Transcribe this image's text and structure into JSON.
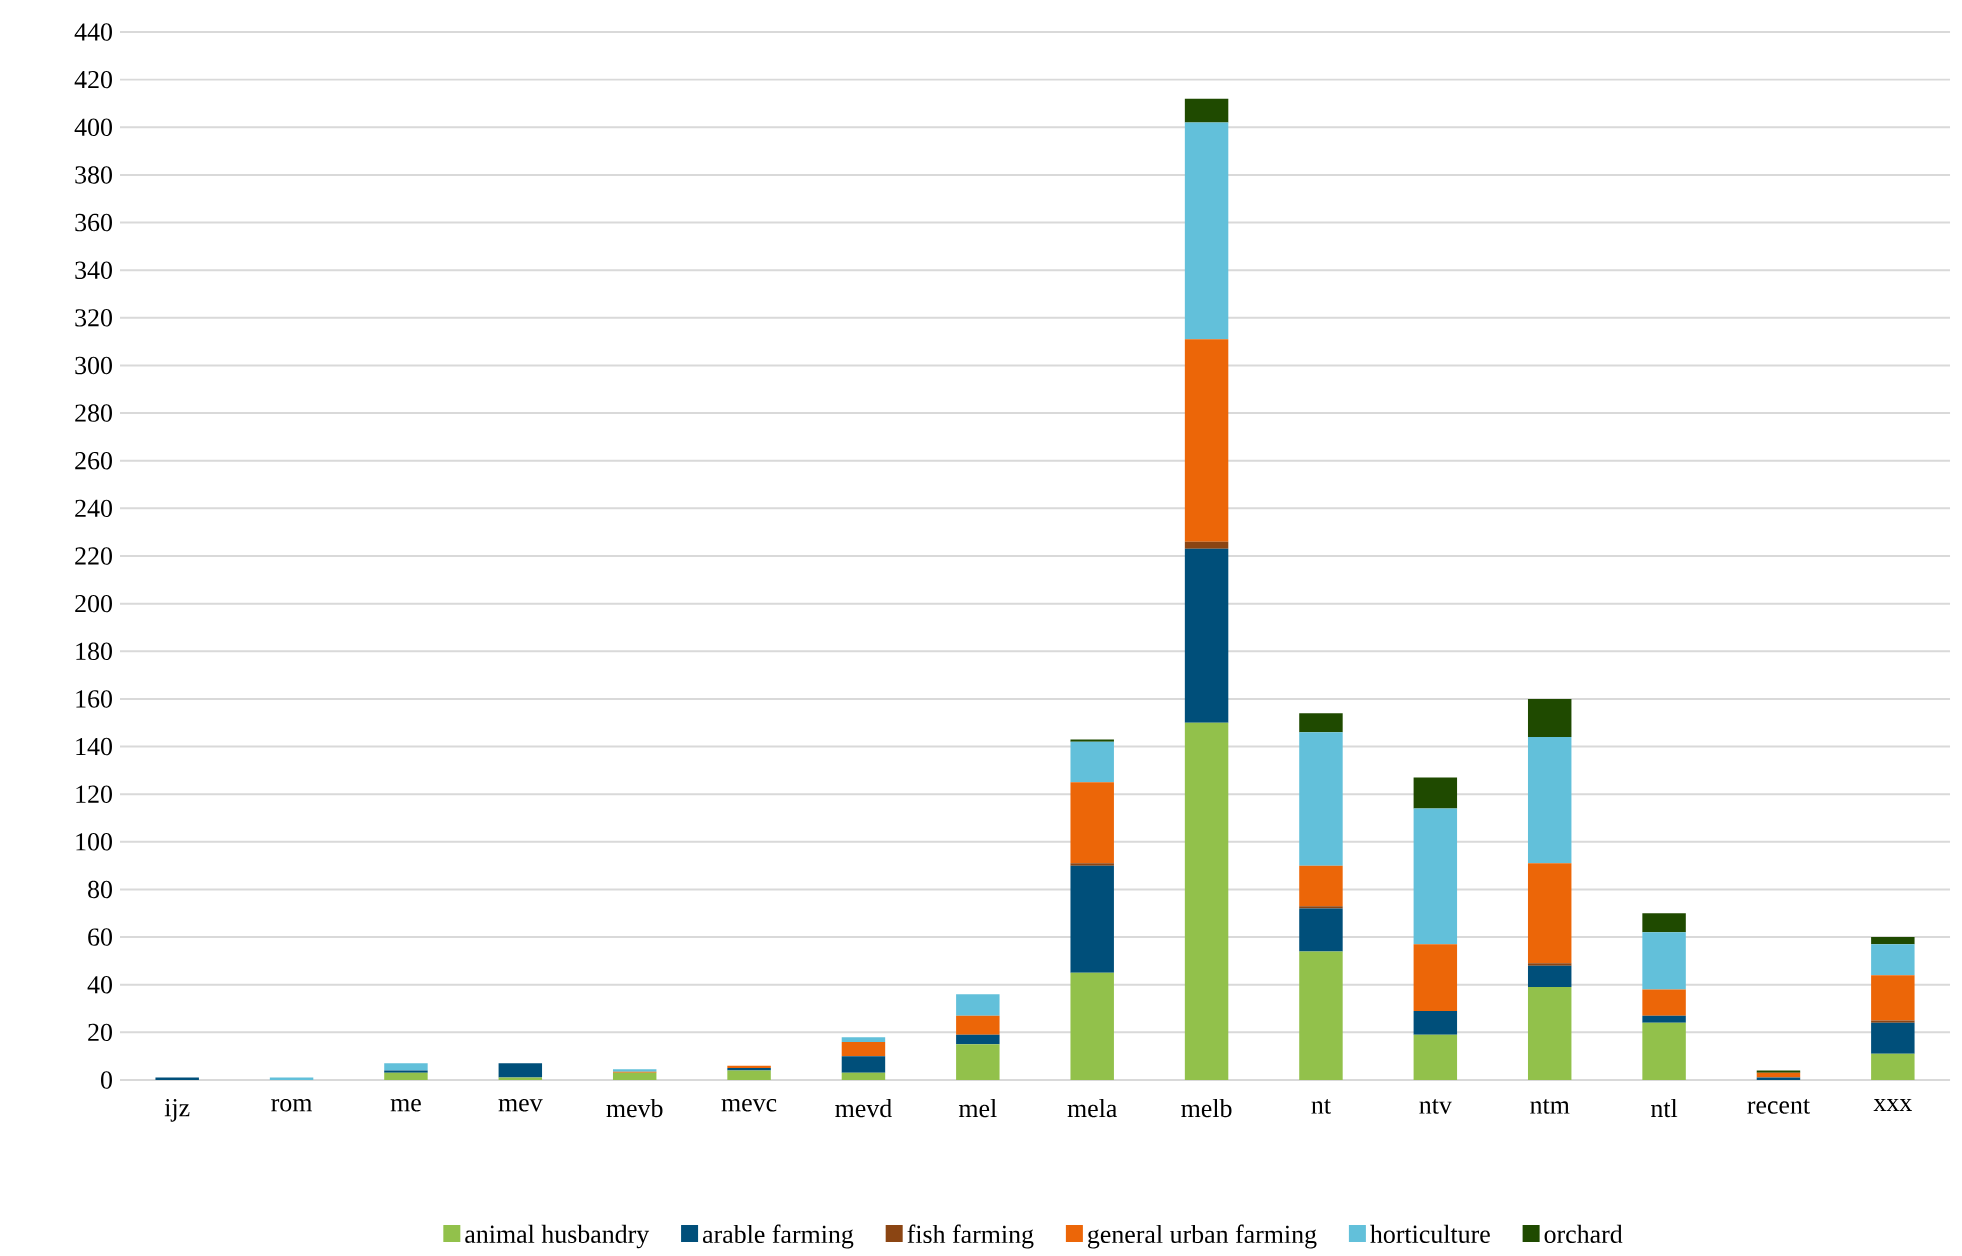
{
  "chart_data": {
    "type": "bar",
    "stacked": true,
    "grid": "y",
    "legend": "bottom",
    "categories": [
      "ijz",
      "rom",
      "me",
      "mev",
      "mevb",
      "mevc",
      "mevd",
      "mel",
      "mela",
      "melb",
      "nt",
      "ntv",
      "ntm",
      "ntl",
      "recent",
      "xxx"
    ],
    "ylim": [
      0,
      440
    ],
    "yticks": [
      0,
      20,
      40,
      60,
      80,
      100,
      120,
      140,
      160,
      180,
      200,
      220,
      240,
      260,
      280,
      300,
      320,
      340,
      360,
      380,
      400,
      420,
      440
    ],
    "series": [
      {
        "name": "animal husbandry",
        "color": "#92c14b",
        "values": [
          0,
          0,
          3,
          1,
          3,
          4,
          3,
          15,
          45,
          150,
          54,
          19,
          39,
          24,
          0,
          11
        ]
      },
      {
        "name": "arable farming",
        "color": "#004f7a",
        "values": [
          1,
          0,
          1,
          6,
          0,
          1,
          7,
          4,
          45,
          73,
          18,
          10,
          9,
          3,
          1,
          13
        ]
      },
      {
        "name": "fish farming",
        "color": "#8b4513",
        "values": [
          0,
          0,
          0,
          0,
          0,
          0,
          0,
          0,
          1,
          3,
          1,
          0,
          1,
          0,
          0,
          1
        ]
      },
      {
        "name": "general urban farming",
        "color": "#ec6608",
        "values": [
          0,
          0,
          0,
          0,
          0.5,
          1,
          6,
          8,
          34,
          85,
          17,
          28,
          42,
          11,
          2,
          19
        ]
      },
      {
        "name": "horticulture",
        "color": "#62c0da",
        "values": [
          0,
          1,
          3,
          0,
          1,
          0,
          2,
          9,
          17,
          91,
          56,
          57,
          53,
          24,
          0,
          13
        ]
      },
      {
        "name": "orchard",
        "color": "#1f4a00",
        "values": [
          0,
          0,
          0,
          0,
          0,
          0,
          0,
          0,
          1,
          10,
          8,
          13,
          16,
          8,
          1,
          3
        ]
      }
    ]
  }
}
